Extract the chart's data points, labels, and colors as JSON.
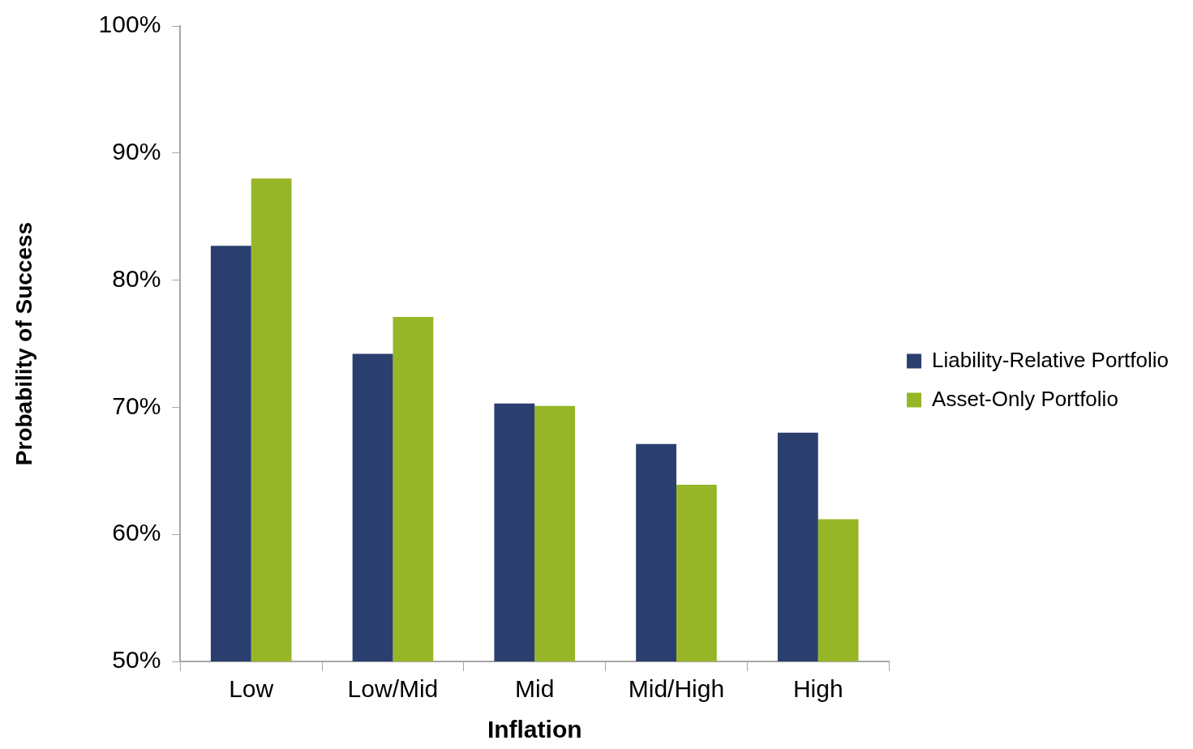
{
  "chart_data": {
    "type": "bar",
    "xlabel": "Inflation",
    "ylabel": "Probability of Success",
    "categories": [
      "Low",
      "Low/Mid",
      "Mid",
      "Mid/High",
      "High"
    ],
    "series": [
      {
        "name": "Liability-Relative Portfolio",
        "color": "#2a3f6e",
        "values": [
          82.7,
          74.2,
          70.3,
          67.1,
          68.0
        ]
      },
      {
        "name": "Asset-Only Portfolio",
        "color": "#97b627",
        "values": [
          88.0,
          77.1,
          70.1,
          63.9,
          61.2
        ]
      }
    ],
    "ylim": [
      50,
      100
    ],
    "yticks": [
      {
        "value": 50,
        "label": "50%"
      },
      {
        "value": 60,
        "label": "60%"
      },
      {
        "value": 70,
        "label": "70%"
      },
      {
        "value": 80,
        "label": "80%"
      },
      {
        "value": 90,
        "label": "90%"
      },
      {
        "value": 100,
        "label": "100%"
      }
    ],
    "grid": false,
    "legend": "right"
  }
}
